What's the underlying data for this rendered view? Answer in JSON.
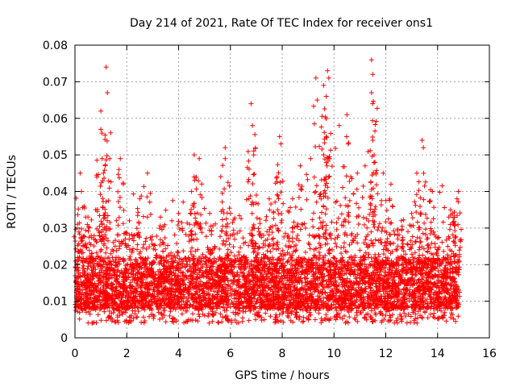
{
  "chart_data": {
    "type": "scatter",
    "title": "Day 214 of 2021, Rate Of TEC Index for receiver ons1",
    "xlabel": "GPS time / hours",
    "ylabel": "ROTI / TECUs",
    "xlim": [
      0,
      16
    ],
    "ylim": [
      0,
      0.08
    ],
    "xticks": [
      0,
      2,
      4,
      6,
      8,
      10,
      12,
      14,
      16
    ],
    "yticks": [
      0,
      0.01,
      0.02,
      0.03,
      0.04,
      0.05,
      0.06,
      0.07,
      0.08
    ],
    "xtick_labels": [
      "0",
      "2",
      "4",
      "6",
      "8",
      "10",
      "12",
      "14",
      "16"
    ],
    "ytick_labels": [
      "0",
      "0.01",
      "0.02",
      "0.03",
      "0.04",
      "0.05",
      "0.06",
      "0.07",
      "0.08"
    ],
    "grid": true,
    "marker": "+",
    "marker_color": "#ff0000",
    "series": [
      {
        "name": "ROTI",
        "band": {
          "x_range": [
            0.0,
            14.85
          ],
          "typical_low": 0.008,
          "typical_high": 0.022,
          "min": 0.004
        },
        "spike_points": [
          {
            "x": 0.1,
            "y": 0.031
          },
          {
            "x": 0.2,
            "y": 0.045
          },
          {
            "x": 0.25,
            "y": 0.04
          },
          {
            "x": 0.5,
            "y": 0.033
          },
          {
            "x": 0.8,
            "y": 0.035
          },
          {
            "x": 1.0,
            "y": 0.062
          },
          {
            "x": 1.0,
            "y": 0.057
          },
          {
            "x": 1.05,
            "y": 0.049
          },
          {
            "x": 1.1,
            "y": 0.045
          },
          {
            "x": 1.2,
            "y": 0.074
          },
          {
            "x": 1.25,
            "y": 0.067
          },
          {
            "x": 1.7,
            "y": 0.046
          },
          {
            "x": 1.75,
            "y": 0.049
          },
          {
            "x": 2.1,
            "y": 0.032
          },
          {
            "x": 2.5,
            "y": 0.038
          },
          {
            "x": 2.8,
            "y": 0.045
          },
          {
            "x": 3.3,
            "y": 0.033
          },
          {
            "x": 4.0,
            "y": 0.034
          },
          {
            "x": 4.5,
            "y": 0.04
          },
          {
            "x": 4.6,
            "y": 0.044
          },
          {
            "x": 4.6,
            "y": 0.05
          },
          {
            "x": 4.8,
            "y": 0.049
          },
          {
            "x": 5.2,
            "y": 0.034
          },
          {
            "x": 5.8,
            "y": 0.052
          },
          {
            "x": 5.8,
            "y": 0.049
          },
          {
            "x": 6.0,
            "y": 0.034
          },
          {
            "x": 6.8,
            "y": 0.064
          },
          {
            "x": 6.85,
            "y": 0.058
          },
          {
            "x": 6.9,
            "y": 0.05
          },
          {
            "x": 7.0,
            "y": 0.039
          },
          {
            "x": 7.5,
            "y": 0.038
          },
          {
            "x": 7.8,
            "y": 0.044
          },
          {
            "x": 7.9,
            "y": 0.055
          },
          {
            "x": 7.95,
            "y": 0.053
          },
          {
            "x": 8.4,
            "y": 0.038
          },
          {
            "x": 8.7,
            "y": 0.047
          },
          {
            "x": 9.1,
            "y": 0.049
          },
          {
            "x": 9.3,
            "y": 0.071
          },
          {
            "x": 9.35,
            "y": 0.065
          },
          {
            "x": 9.6,
            "y": 0.069
          },
          {
            "x": 9.7,
            "y": 0.066
          },
          {
            "x": 9.75,
            "y": 0.073
          },
          {
            "x": 9.8,
            "y": 0.071
          },
          {
            "x": 9.7,
            "y": 0.055
          },
          {
            "x": 9.6,
            "y": 0.05
          },
          {
            "x": 10.2,
            "y": 0.058
          },
          {
            "x": 10.5,
            "y": 0.061
          },
          {
            "x": 10.55,
            "y": 0.053
          },
          {
            "x": 10.9,
            "y": 0.045
          },
          {
            "x": 11.2,
            "y": 0.047
          },
          {
            "x": 11.45,
            "y": 0.076
          },
          {
            "x": 11.5,
            "y": 0.072
          },
          {
            "x": 11.45,
            "y": 0.067
          },
          {
            "x": 11.5,
            "y": 0.054
          },
          {
            "x": 11.55,
            "y": 0.05
          },
          {
            "x": 11.9,
            "y": 0.045
          },
          {
            "x": 12.2,
            "y": 0.042
          },
          {
            "x": 12.6,
            "y": 0.032
          },
          {
            "x": 13.0,
            "y": 0.034
          },
          {
            "x": 13.2,
            "y": 0.045
          },
          {
            "x": 13.4,
            "y": 0.054
          },
          {
            "x": 13.45,
            "y": 0.052
          },
          {
            "x": 13.8,
            "y": 0.04
          },
          {
            "x": 14.5,
            "y": 0.035
          },
          {
            "x": 14.8,
            "y": 0.04
          },
          {
            "x": 14.75,
            "y": 0.038
          }
        ]
      }
    ]
  }
}
